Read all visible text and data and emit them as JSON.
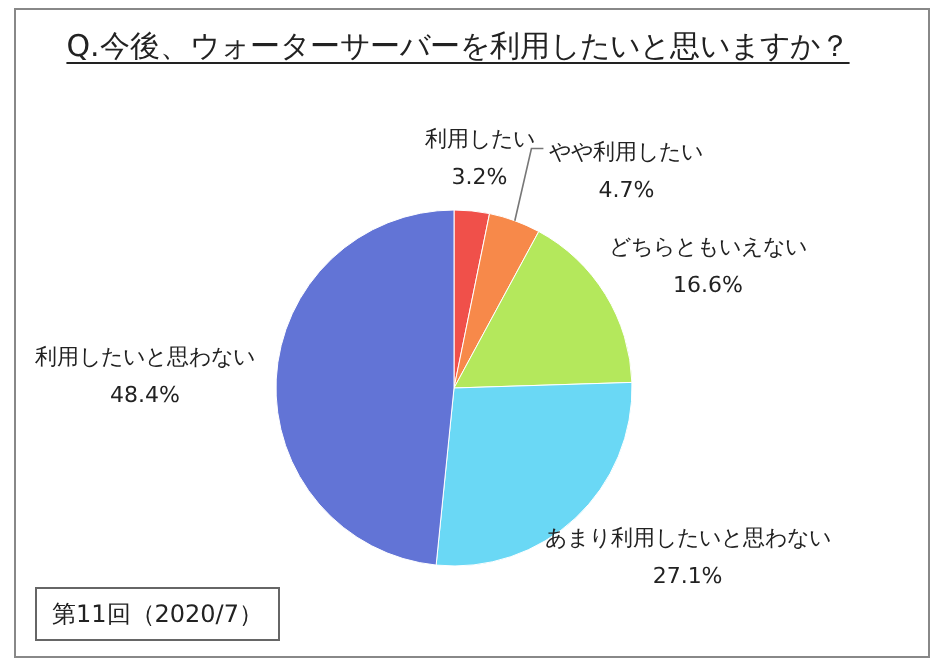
{
  "chart_data": {
    "type": "pie",
    "title": "Q.今後、ウォーターサーバーを利用したいと思いますか？",
    "categories": [
      "利用したい",
      "やや利用したい",
      "どちらともいえない",
      "あまり利用したいと思わない",
      "利用したいと思わない"
    ],
    "values": [
      3.2,
      4.7,
      16.6,
      27.1,
      48.4
    ],
    "value_labels": [
      "3.2%",
      "4.7%",
      "16.6%",
      "27.1%",
      "48.4%"
    ],
    "colors": [
      "#f0504a",
      "#f7894a",
      "#b4e85c",
      "#6ad8f5",
      "#6274d6"
    ],
    "annotations": [
      "第11回（2020/7）"
    ]
  }
}
